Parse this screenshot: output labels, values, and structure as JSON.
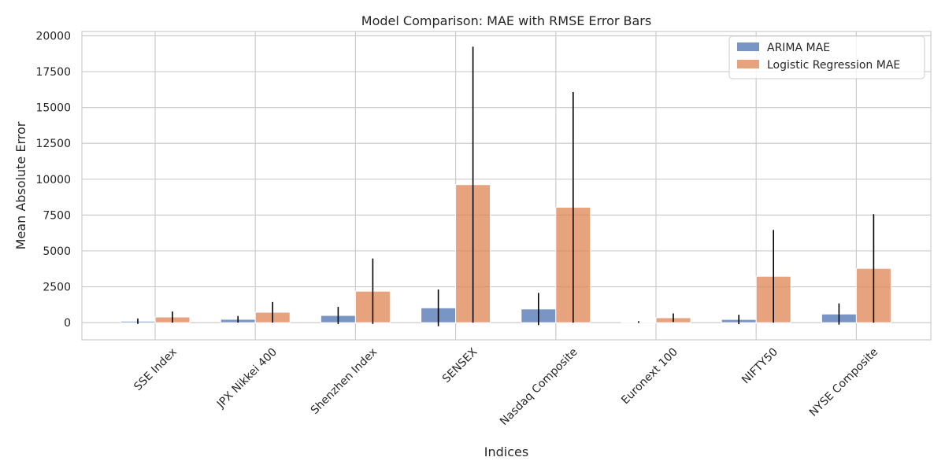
{
  "chart_data": {
    "type": "bar",
    "title": "Model Comparison: MAE with RMSE Error Bars",
    "xlabel": "Indices",
    "ylabel": "Mean Absolute Error",
    "categories": [
      "SSE Index",
      "JPX Nikkei 400",
      "Shenzhen Index",
      "SENSEX",
      "Nasdaq Composite",
      "Euronext 100",
      "NIFTY50",
      "NYSE Composite"
    ],
    "series": [
      {
        "name": "ARIMA MAE",
        "color": "#4c72b0",
        "values": [
          100,
          230,
          500,
          1030,
          950,
          40,
          220,
          600
        ],
        "errors": [
          190,
          230,
          600,
          1280,
          1120,
          60,
          330,
          740
        ]
      },
      {
        "name": "Logistic Regression MAE",
        "color": "#dd8452",
        "values": [
          390,
          720,
          2190,
          9620,
          8040,
          340,
          3230,
          3780
        ],
        "errors": [
          390,
          720,
          2280,
          9620,
          8040,
          300,
          3230,
          3780
        ]
      }
    ],
    "ylim": [
      -1200,
      20300
    ],
    "yticks": [
      0,
      2500,
      5000,
      7500,
      10000,
      12500,
      15000,
      17500,
      20000
    ],
    "grid": true,
    "legend_position": "top-right"
  }
}
